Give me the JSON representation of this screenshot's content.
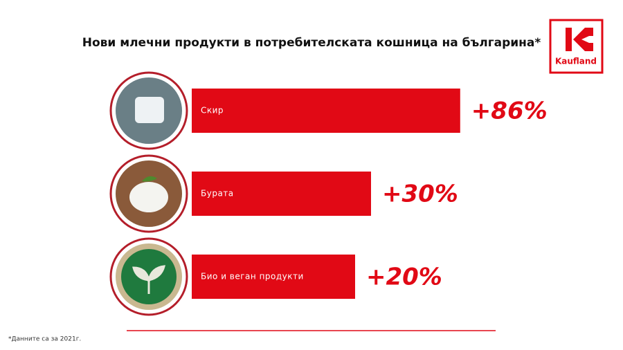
{
  "chart_data": {
    "type": "bar",
    "title": "Нови млечни продукти в потребителската кошница на българина*",
    "categories": [
      "Скир",
      "Бурата",
      "Био и веган продукти"
    ],
    "values": [
      86,
      30,
      20
    ],
    "value_labels": [
      "+86%",
      "+30%",
      "+20%"
    ],
    "color": "#e10915",
    "footnote": "*Данните са за 2021г.",
    "logo": "Kaufland"
  }
}
